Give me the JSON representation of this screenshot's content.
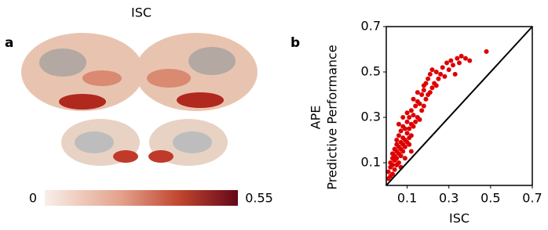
{
  "panel_a": {
    "label": "a",
    "title": "ISC",
    "colorbar": {
      "ticks": [
        0,
        0.55
      ]
    }
  },
  "chart_data": {
    "type": "scatter",
    "label": "b",
    "xlabel": "ISC",
    "ylabel": [
      "APE",
      "Predictive Performance"
    ],
    "color": "#dd0000",
    "identity_line": true,
    "xlim": [
      0,
      0.7
    ],
    "ylim": [
      0,
      0.7
    ],
    "xticks": [
      0.1,
      0.3,
      0.5,
      0.7
    ],
    "yticks": [
      0.1,
      0.3,
      0.5,
      0.7
    ],
    "x": [
      0.01,
      0.01,
      0.02,
      0.02,
      0.02,
      0.03,
      0.03,
      0.03,
      0.03,
      0.04,
      0.04,
      0.04,
      0.04,
      0.05,
      0.05,
      0.05,
      0.05,
      0.05,
      0.06,
      0.06,
      0.06,
      0.06,
      0.07,
      0.07,
      0.07,
      0.07,
      0.08,
      0.08,
      0.08,
      0.08,
      0.09,
      0.09,
      0.09,
      0.1,
      0.1,
      0.1,
      0.11,
      0.11,
      0.11,
      0.12,
      0.12,
      0.12,
      0.13,
      0.13,
      0.14,
      0.14,
      0.15,
      0.15,
      0.16,
      0.16,
      0.17,
      0.17,
      0.18,
      0.18,
      0.19,
      0.19,
      0.2,
      0.2,
      0.21,
      0.21,
      0.22,
      0.22,
      0.23,
      0.24,
      0.24,
      0.25,
      0.26,
      0.27,
      0.28,
      0.29,
      0.3,
      0.31,
      0.32,
      0.33,
      0.34,
      0.35,
      0.36,
      0.38,
      0.4,
      0.48,
      0.06,
      0.08,
      0.1,
      0.13,
      0.15,
      0.18,
      0.11,
      0.07,
      0.09,
      0.12
    ],
    "y": [
      0.03,
      0.06,
      0.04,
      0.08,
      0.1,
      0.05,
      0.09,
      0.12,
      0.14,
      0.07,
      0.11,
      0.13,
      0.16,
      0.09,
      0.12,
      0.15,
      0.18,
      0.2,
      0.1,
      0.14,
      0.17,
      0.22,
      0.13,
      0.16,
      0.19,
      0.24,
      0.15,
      0.18,
      0.21,
      0.26,
      0.17,
      0.2,
      0.25,
      0.19,
      0.23,
      0.28,
      0.21,
      0.25,
      0.3,
      0.22,
      0.27,
      0.33,
      0.26,
      0.31,
      0.28,
      0.35,
      0.3,
      0.37,
      0.29,
      0.36,
      0.33,
      0.4,
      0.35,
      0.42,
      0.38,
      0.45,
      0.4,
      0.47,
      0.41,
      0.49,
      0.43,
      0.51,
      0.45,
      0.44,
      0.5,
      0.47,
      0.49,
      0.52,
      0.48,
      0.54,
      0.51,
      0.55,
      0.53,
      0.49,
      0.56,
      0.54,
      0.57,
      0.56,
      0.55,
      0.59,
      0.27,
      0.3,
      0.32,
      0.38,
      0.41,
      0.44,
      0.18,
      0.08,
      0.12,
      0.15
    ]
  }
}
